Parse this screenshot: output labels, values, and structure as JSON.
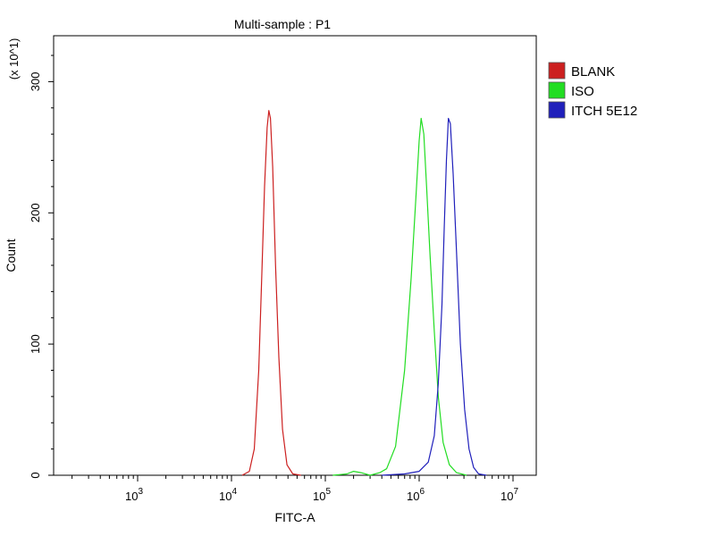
{
  "chart_data": {
    "type": "line",
    "title": "Multi-sample : P1",
    "xlabel": "FITC-A",
    "ylabel": "Count",
    "y_multiplier_label": "(x 10^1)",
    "x_scale": "log",
    "xlim": [
      10000,
      10000000
    ],
    "ylim": [
      0,
      335
    ],
    "y_ticks": [
      0,
      100,
      200,
      300
    ],
    "x_tick_labels": [
      {
        "base": "10",
        "exp": "3",
        "value": 1000
      },
      {
        "base": "10",
        "exp": "4",
        "value": 10000
      },
      {
        "base": "10",
        "exp": "5",
        "value": 100000
      },
      {
        "base": "10",
        "exp": "6",
        "value": 1000000
      },
      {
        "base": "10",
        "exp": "7",
        "value": 10000000
      }
    ],
    "legend_position": "right",
    "series": [
      {
        "name": "BLANK",
        "color": "#cc2020",
        "x": [
          13000,
          15500,
          17500,
          19500,
          21000,
          22500,
          24000,
          25000,
          26000,
          27500,
          29500,
          32000,
          35000,
          39000,
          45000,
          55000
        ],
        "y": [
          0,
          3,
          20,
          80,
          150,
          220,
          265,
          278,
          272,
          235,
          160,
          90,
          35,
          8,
          1,
          0
        ]
      },
      {
        "name": "ISO",
        "color": "#22dd22",
        "x": [
          120000,
          170000,
          200000,
          240000,
          300000,
          380000,
          450000,
          560000,
          700000,
          820000,
          920000,
          1000000,
          1050000,
          1120000,
          1200000,
          1300000,
          1450000,
          1600000,
          1800000,
          2100000,
          2500000,
          3200000
        ],
        "y": [
          0,
          1,
          3,
          2,
          0,
          2,
          5,
          22,
          80,
          150,
          210,
          255,
          272,
          260,
          220,
          170,
          110,
          60,
          25,
          8,
          2,
          0
        ]
      },
      {
        "name": "ITCH 5E12",
        "color": "#2020bb",
        "x": [
          400000,
          700000,
          1000000,
          1250000,
          1450000,
          1600000,
          1750000,
          1850000,
          1950000,
          2050000,
          2150000,
          2300000,
          2500000,
          2750000,
          3050000,
          3400000,
          3800000,
          4300000,
          5200000
        ],
        "y": [
          0,
          1,
          3,
          10,
          30,
          70,
          130,
          190,
          240,
          272,
          268,
          230,
          170,
          100,
          50,
          20,
          6,
          1,
          0
        ]
      }
    ]
  }
}
